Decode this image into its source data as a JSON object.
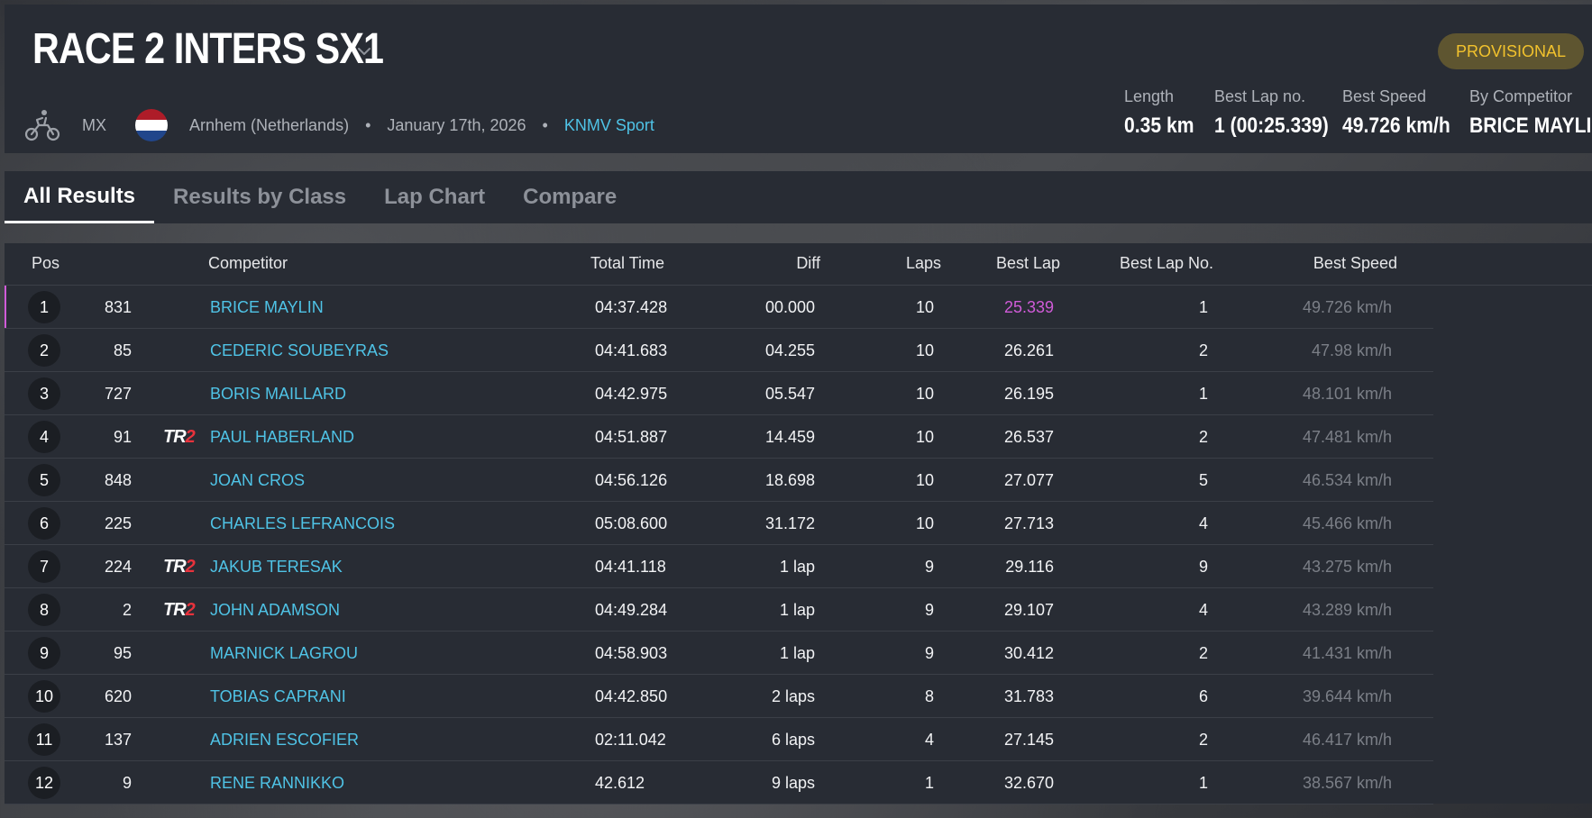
{
  "race": {
    "title": "RACE 2 INTERS SX1",
    "status": "PROVISIONAL",
    "discipline": "MX",
    "location": "Arnhem (Netherlands)",
    "date": "January 17th, 2026",
    "organizer": "KNMV Sport",
    "icons": {
      "discipline": "motorbike-icon",
      "flag": "netherlands-flag-icon",
      "title_dropdown": "chevron-down-icon"
    },
    "flag_colors": [
      "#ae1c28",
      "#ffffff",
      "#21468b"
    ]
  },
  "stats": {
    "length_label": "Length",
    "length_value": "0.35 km",
    "best_lap_no_label": "Best Lap no.",
    "best_lap_no_value": "1 (00:25.339)",
    "best_speed_label": "Best Speed",
    "best_speed_value": "49.726 km/h",
    "by_competitor_label": "By Competitor",
    "by_competitor_value": "BRICE MAYLIN"
  },
  "tabs": [
    {
      "label": "All Results",
      "active": true
    },
    {
      "label": "Results by Class",
      "active": false
    },
    {
      "label": "Lap Chart",
      "active": false
    },
    {
      "label": "Compare",
      "active": false
    }
  ],
  "table": {
    "headers": {
      "pos": "Pos",
      "competitor": "Competitor",
      "total_time": "Total Time",
      "diff": "Diff",
      "laps": "Laps",
      "best_lap": "Best Lap",
      "best_lap_no": "Best Lap No.",
      "best_speed": "Best Speed"
    },
    "rows": [
      {
        "pos": "1",
        "num": "831",
        "tr2": "",
        "name": "BRICE MAYLIN",
        "total": "04:37.428",
        "diff": "00.000",
        "laps": "10",
        "best": "25.339",
        "bln": "1",
        "speed": "49.726 km/h"
      },
      {
        "pos": "2",
        "num": "85",
        "tr2": "",
        "name": "CEDERIC SOUBEYRAS",
        "total": "04:41.683",
        "diff": "04.255",
        "laps": "10",
        "best": "26.261",
        "bln": "2",
        "speed": "47.98 km/h"
      },
      {
        "pos": "3",
        "num": "727",
        "tr2": "",
        "name": "BORIS MAILLARD",
        "total": "04:42.975",
        "diff": "05.547",
        "laps": "10",
        "best": "26.195",
        "bln": "1",
        "speed": "48.101 km/h"
      },
      {
        "pos": "4",
        "num": "91",
        "tr2": "TR2",
        "name": "PAUL HABERLAND",
        "total": "04:51.887",
        "diff": "14.459",
        "laps": "10",
        "best": "26.537",
        "bln": "2",
        "speed": "47.481 km/h"
      },
      {
        "pos": "5",
        "num": "848",
        "tr2": "",
        "name": "JOAN CROS",
        "total": "04:56.126",
        "diff": "18.698",
        "laps": "10",
        "best": "27.077",
        "bln": "5",
        "speed": "46.534 km/h"
      },
      {
        "pos": "6",
        "num": "225",
        "tr2": "",
        "name": "CHARLES LEFRANCOIS",
        "total": "05:08.600",
        "diff": "31.172",
        "laps": "10",
        "best": "27.713",
        "bln": "4",
        "speed": "45.466 km/h"
      },
      {
        "pos": "7",
        "num": "224",
        "tr2": "TR2",
        "name": "JAKUB TERESAK",
        "total": "04:41.118",
        "diff": "1 lap",
        "laps": "9",
        "best": "29.116",
        "bln": "9",
        "speed": "43.275 km/h"
      },
      {
        "pos": "8",
        "num": "2",
        "tr2": "TR2",
        "name": "JOHN ADAMSON",
        "total": "04:49.284",
        "diff": "1 lap",
        "laps": "9",
        "best": "29.107",
        "bln": "4",
        "speed": "43.289 km/h"
      },
      {
        "pos": "9",
        "num": "95",
        "tr2": "",
        "name": "MARNICK LAGROU",
        "total": "04:58.903",
        "diff": "1 lap",
        "laps": "9",
        "best": "30.412",
        "bln": "2",
        "speed": "41.431 km/h"
      },
      {
        "pos": "10",
        "num": "620",
        "tr2": "",
        "name": "TOBIAS CAPRANI",
        "total": "04:42.850",
        "diff": "2 laps",
        "laps": "8",
        "best": "31.783",
        "bln": "6",
        "speed": "39.644 km/h"
      },
      {
        "pos": "11",
        "num": "137",
        "tr2": "",
        "name": "ADRIEN ESCOFIER",
        "total": "02:11.042",
        "diff": "6 laps",
        "laps": "4",
        "best": "27.145",
        "bln": "2",
        "speed": "46.417 km/h"
      },
      {
        "pos": "12",
        "num": "9",
        "tr2": "",
        "name": "RENE RANNIKKO",
        "total": "42.612",
        "diff": "9 laps",
        "laps": "1",
        "best": "32.670",
        "bln": "1",
        "speed": "38.567 km/h"
      }
    ]
  }
}
